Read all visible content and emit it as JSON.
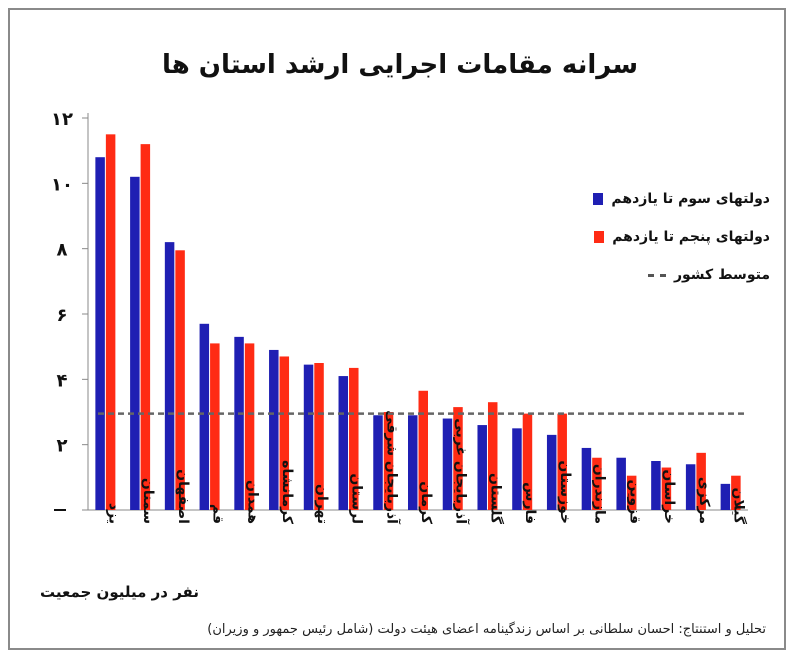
{
  "chart_data": {
    "type": "bar",
    "title": "سرانه مقامات اجرایی ارشد استان ها",
    "ylabel": "نفر در میلیون جمعیت",
    "ylim": [
      0,
      12
    ],
    "yticks": [
      0,
      2,
      4,
      6,
      8,
      10,
      12
    ],
    "ytick_labels": [
      "",
      "۲",
      "۴",
      "۶",
      "۸",
      "۱۰",
      "۱۲"
    ],
    "categories": [
      "یزد",
      "سمنان",
      "اصفهان",
      "قم",
      "همدان",
      "کرمانشاه",
      "تهران",
      "لرستان",
      "آذربایجان شرقی",
      "کرمان",
      "آذربایجان غربی",
      "گلستان",
      "فارس",
      "خوزستان",
      "مازندران",
      "قزوین",
      "خراسان",
      "مرکزی",
      "گیلان"
    ],
    "series": [
      {
        "name": "دولتهای سوم تا یازدهم",
        "color": "#1f1fb3",
        "values": [
          10.8,
          10.2,
          8.2,
          5.7,
          5.3,
          4.9,
          4.45,
          4.1,
          2.9,
          2.9,
          2.8,
          2.6,
          2.5,
          2.3,
          1.9,
          1.6,
          1.5,
          1.4,
          0.8
        ]
      },
      {
        "name": "دولتهای پنجم تا یازدهم",
        "color": "#ff2b14",
        "values": [
          11.5,
          11.2,
          7.95,
          5.1,
          5.1,
          4.7,
          4.5,
          4.35,
          3.0,
          3.65,
          3.15,
          3.3,
          2.95,
          2.95,
          1.6,
          1.05,
          1.3,
          1.75,
          1.05
        ]
      }
    ],
    "average": {
      "name": "متوسط کشور",
      "value": 2.95
    },
    "legend_position": "right",
    "grid": false
  },
  "source_note": "تحلیل و استنتاج: احسان سلطانی بر اساس زندگینامه اعضای هیئت دولت (شامل رئیس جمهور و وزیران)"
}
